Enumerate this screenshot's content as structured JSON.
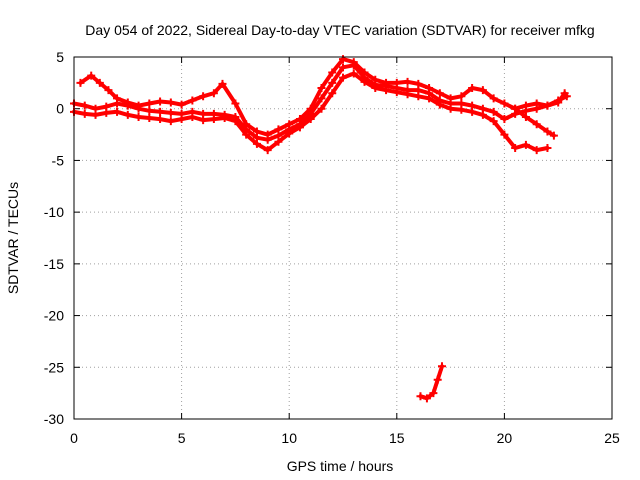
{
  "chart_data": {
    "type": "line",
    "title": "Day 054 of 2022, Sidereal Day-to-day VTEC variation (SDTVAR) for receiver mfkg",
    "xlabel": "GPS time / hours",
    "ylabel": "SDTVAR / TECUs",
    "xlim": [
      0,
      25
    ],
    "ylim": [
      -30,
      5
    ],
    "xticks": [
      0,
      5,
      10,
      15,
      20,
      25
    ],
    "yticks": [
      5,
      0,
      -5,
      -10,
      -15,
      -20,
      -25,
      -30
    ],
    "grid": true,
    "series_color": "#ff0000",
    "series": [
      {
        "name": "main-band",
        "x": [
          0.0,
          0.5,
          1.0,
          1.5,
          2.0,
          2.5,
          3.0,
          3.5,
          4.0,
          4.5,
          5.0,
          5.5,
          6.0,
          6.5,
          7.0,
          7.5,
          8.0,
          8.5,
          9.0,
          9.5,
          10.0,
          10.5,
          11.0,
          11.5,
          12.0,
          12.5,
          13.0,
          13.5,
          14.0,
          14.5,
          15.0,
          15.5,
          16.0,
          16.5,
          17.0,
          17.5,
          18.0,
          18.5,
          19.0,
          19.5,
          20.0,
          20.5,
          21.0,
          21.5,
          22.0,
          22.5,
          22.9
        ],
        "y": [
          0.5,
          0.3,
          0.0,
          0.2,
          0.5,
          0.3,
          0.0,
          -0.2,
          -0.3,
          -0.4,
          -0.5,
          -0.3,
          -0.5,
          -0.5,
          -0.6,
          -0.8,
          -2.0,
          -2.8,
          -3.0,
          -2.6,
          -2.0,
          -1.5,
          -0.5,
          1.0,
          2.5,
          4.0,
          4.2,
          3.0,
          2.3,
          2.2,
          2.0,
          1.8,
          1.8,
          1.5,
          0.8,
          0.5,
          0.5,
          0.3,
          0.0,
          -0.3,
          -1.0,
          -0.5,
          -0.2,
          0.0,
          0.3,
          0.8,
          1.2
        ]
      },
      {
        "name": "upper-band",
        "x": [
          0.3,
          0.8,
          1.2,
          1.6,
          2.0,
          2.5,
          3.0,
          3.5,
          4.0,
          4.5,
          5.0,
          5.5,
          6.0,
          6.5,
          6.9,
          7.5,
          8.0,
          8.5,
          9.0,
          9.5,
          10.0,
          10.5,
          11.0,
          11.5,
          12.0,
          12.5,
          13.0,
          13.5,
          14.0,
          14.5,
          15.0,
          15.5,
          16.0,
          16.5,
          17.0,
          17.5,
          18.0,
          18.5,
          19.0,
          19.5,
          20.0,
          20.5,
          21.0,
          21.5,
          22.0,
          22.5,
          22.8
        ],
        "y": [
          2.5,
          3.2,
          2.5,
          1.8,
          1.0,
          0.6,
          0.3,
          0.5,
          0.7,
          0.6,
          0.4,
          0.8,
          1.2,
          1.5,
          2.4,
          0.5,
          -1.5,
          -2.2,
          -2.5,
          -2.0,
          -1.5,
          -1.0,
          0.0,
          2.0,
          3.5,
          4.8,
          4.5,
          3.5,
          2.8,
          2.5,
          2.5,
          2.6,
          2.4,
          2.0,
          1.5,
          1.0,
          1.2,
          2.0,
          1.8,
          1.0,
          0.5,
          0.0,
          0.3,
          0.5,
          0.3,
          0.6,
          1.5
        ]
      },
      {
        "name": "lower-band",
        "x": [
          0.0,
          0.5,
          1.0,
          1.5,
          2.0,
          2.5,
          3.0,
          3.5,
          4.0,
          4.5,
          5.0,
          5.5,
          6.0,
          6.5,
          7.0,
          7.5,
          8.0,
          8.5,
          9.0,
          9.5,
          10.0,
          10.5,
          11.0,
          11.5,
          12.0,
          12.5,
          13.0,
          13.5,
          14.0,
          14.5,
          15.0,
          15.5,
          16.0,
          16.5,
          17.0,
          17.5,
          18.0,
          18.5,
          19.0,
          19.5,
          20.0,
          20.5,
          21.0,
          21.5,
          22.0
        ],
        "y": [
          -0.3,
          -0.5,
          -0.6,
          -0.4,
          -0.3,
          -0.6,
          -0.8,
          -0.9,
          -1.0,
          -1.2,
          -1.0,
          -0.8,
          -1.1,
          -1.0,
          -0.9,
          -1.2,
          -2.5,
          -3.4,
          -4.0,
          -3.2,
          -2.4,
          -1.8,
          -1.0,
          0.0,
          1.5,
          3.0,
          3.4,
          2.6,
          2.0,
          1.8,
          1.6,
          1.4,
          1.2,
          1.0,
          0.4,
          0.0,
          -0.1,
          -0.3,
          -0.6,
          -1.2,
          -2.5,
          -3.8,
          -3.5,
          -4.0,
          -3.8
        ]
      },
      {
        "name": "late-branch",
        "x": [
          20.5,
          21.0,
          21.5,
          22.0,
          22.3
        ],
        "y": [
          0.0,
          -0.8,
          -1.5,
          -2.2,
          -2.6
        ]
      },
      {
        "name": "outlier-arc",
        "x": [
          16.1,
          16.4,
          16.7,
          16.9,
          17.1
        ],
        "y": [
          -27.8,
          -28.0,
          -27.5,
          -26.2,
          -24.9
        ]
      }
    ]
  }
}
